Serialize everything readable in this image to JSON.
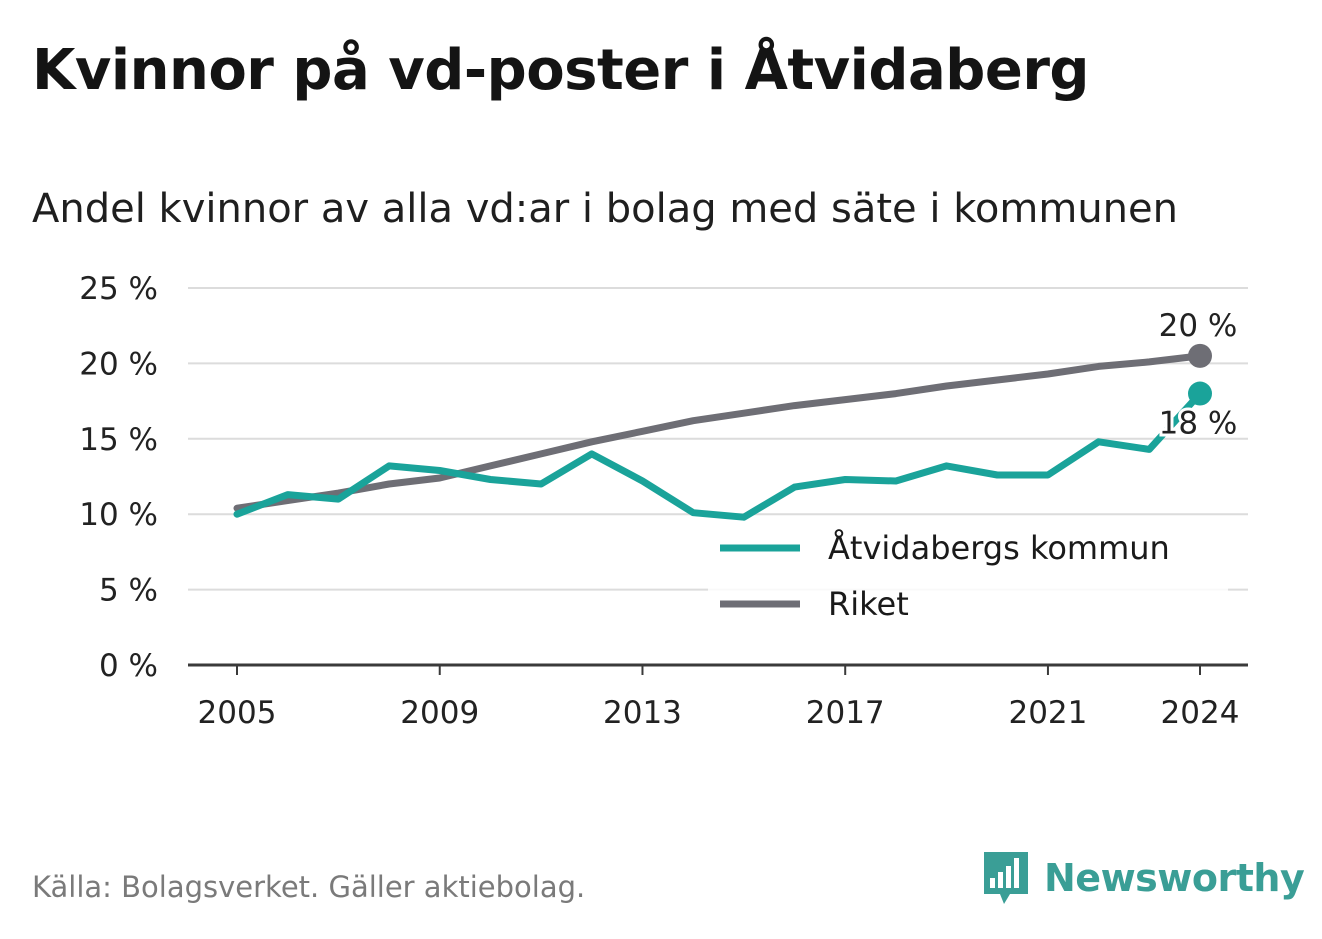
{
  "title": "Kvinnor på vd-poster i Åtvidaberg",
  "subtitle": "Andel kvinnor av alla vd:ar i bolag med säte i kommunen",
  "source": "Källa: Bolagsverket. Gäller aktiebolag.",
  "brand": {
    "name": "Newsworthy",
    "icon": "bar-chart-speech-bubble-icon",
    "color": "#3a9e96"
  },
  "chart_data": {
    "type": "line",
    "ylim": [
      0,
      25
    ],
    "yticks": [
      0,
      5,
      10,
      15,
      20,
      25
    ],
    "ytick_labels": [
      "0 %",
      "5 %",
      "10 %",
      "15 %",
      "20 %",
      "25 %"
    ],
    "xlim": [
      2004,
      2025
    ],
    "xticks": [
      2005,
      2009,
      2013,
      2017,
      2021,
      2024
    ],
    "xtick_labels": [
      "2005",
      "2009",
      "2013",
      "2017",
      "2021",
      "2024"
    ],
    "grid": true,
    "legend_position": "bottom-right",
    "series": [
      {
        "name": "Åtvidabergs kommun",
        "color": "#1aa39a",
        "end_label": "18 %",
        "x": [
          2005,
          2006,
          2007,
          2008,
          2009,
          2010,
          2011,
          2012,
          2013,
          2014,
          2015,
          2016,
          2017,
          2018,
          2019,
          2020,
          2021,
          2022,
          2023,
          2024
        ],
        "values": [
          10.0,
          11.3,
          11.0,
          13.2,
          12.9,
          12.3,
          12.0,
          14.0,
          12.2,
          10.1,
          9.8,
          11.8,
          12.3,
          12.2,
          13.2,
          12.6,
          12.6,
          14.8,
          14.3,
          18.0
        ]
      },
      {
        "name": "Riket",
        "color": "#6e6e75",
        "end_label": "20 %",
        "x": [
          2005,
          2006,
          2007,
          2008,
          2009,
          2010,
          2011,
          2012,
          2013,
          2014,
          2015,
          2016,
          2017,
          2018,
          2019,
          2020,
          2021,
          2022,
          2023,
          2024
        ],
        "values": [
          10.4,
          10.9,
          11.4,
          12.0,
          12.4,
          13.2,
          14.0,
          14.8,
          15.5,
          16.2,
          16.7,
          17.2,
          17.6,
          18.0,
          18.5,
          18.9,
          19.3,
          19.8,
          20.1,
          20.5
        ]
      }
    ]
  }
}
